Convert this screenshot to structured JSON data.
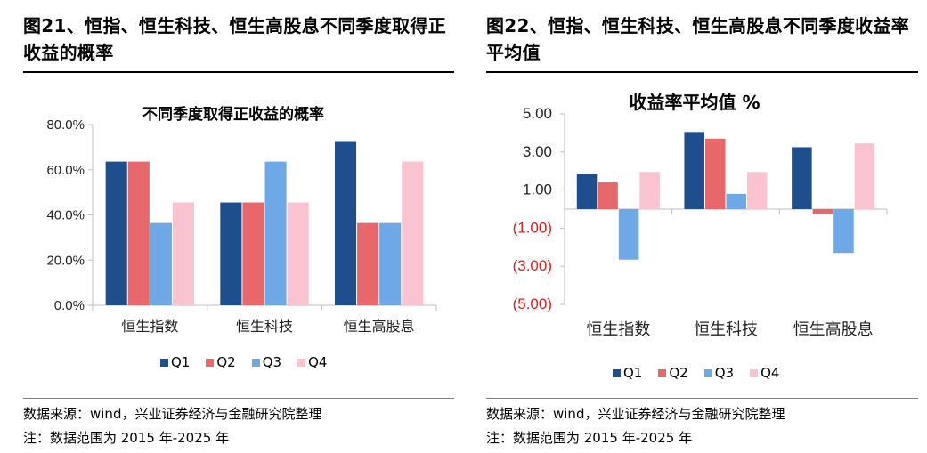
{
  "charts": [
    {
      "fig_title": "图21、恒指、恒生科技、恒生高股息不同季度取得正收益的概率",
      "source": "数据来源：wind，兴业证券经济与金融研究院整理",
      "note": "注：数据范围为 2015 年-2025 年"
    },
    {
      "fig_title": "图22、恒指、恒生科技、恒生高股息不同季度收益率平均值",
      "source": "数据来源：wind，兴业证券经济与金融研究院整理",
      "note": "注：数据范围为 2015 年-2025 年"
    }
  ],
  "colors": {
    "Q1": "#1f4e8c",
    "Q2": "#e8676b",
    "Q3": "#6fa8e6",
    "Q4": "#f9c3cf",
    "axis": "#bfbfbf"
  },
  "chart_data": [
    {
      "type": "bar",
      "title": "不同季度取得正收益的概率",
      "categories": [
        "恒生指数",
        "恒生科技",
        "恒生高股息"
      ],
      "series": [
        {
          "name": "Q1",
          "values": [
            63.6,
            45.5,
            72.7
          ]
        },
        {
          "name": "Q2",
          "values": [
            63.6,
            45.5,
            36.4
          ]
        },
        {
          "name": "Q3",
          "values": [
            36.4,
            63.6,
            36.4
          ]
        },
        {
          "name": "Q4",
          "values": [
            45.5,
            45.5,
            63.6
          ]
        }
      ],
      "ylim": [
        0,
        80
      ],
      "yticks": [
        0,
        20,
        40,
        60,
        80
      ],
      "ytick_labels": [
        "0.0%",
        "20.0%",
        "40.0%",
        "60.0%",
        "80.0%"
      ],
      "legend": "bottom",
      "grid": false
    },
    {
      "type": "bar",
      "title": "收益率平均值 %",
      "categories": [
        "恒生指数",
        "恒生科技",
        "恒生高股息"
      ],
      "series": [
        {
          "name": "Q1",
          "values": [
            1.85,
            4.05,
            3.25
          ]
        },
        {
          "name": "Q2",
          "values": [
            1.4,
            3.7,
            -0.25
          ]
        },
        {
          "name": "Q3",
          "values": [
            -2.65,
            0.8,
            -2.3
          ]
        },
        {
          "name": "Q4",
          "values": [
            1.95,
            1.95,
            3.45
          ]
        }
      ],
      "ylim": [
        -5,
        5
      ],
      "yticks": [
        5,
        3,
        1,
        -1,
        -3,
        -5
      ],
      "ytick_labels": [
        "5.00",
        "3.00",
        "1.00",
        "(1.00)",
        "(3.00)",
        "(5.00)"
      ],
      "legend": "bottom",
      "grid": false
    }
  ]
}
